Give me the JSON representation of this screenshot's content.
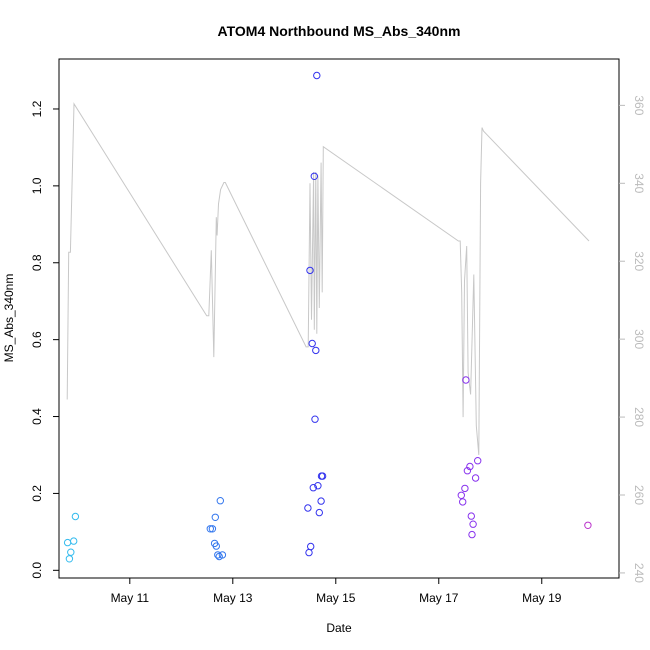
{
  "chart_data": {
    "type": "scatter",
    "title": "ATOM4 Northbound MS_Abs_340nm",
    "xlabel": "Date",
    "ylabel": "MS_Abs_340nm",
    "x_axis": {
      "type": "date",
      "range": [
        "2019-05-09T15:00",
        "2019-05-20T12:00"
      ],
      "ticks": [
        {
          "value": "2019-05-11T00:00",
          "label": "May 11"
        },
        {
          "value": "2019-05-13T00:00",
          "label": "May 13"
        },
        {
          "value": "2019-05-15T00:00",
          "label": "May 15"
        },
        {
          "value": "2019-05-17T00:00",
          "label": "May 17"
        },
        {
          "value": "2019-05-19T00:00",
          "label": "May 19"
        }
      ]
    },
    "y_axis": {
      "range": [
        -0.02,
        1.33
      ],
      "ticks": [
        0.0,
        0.2,
        0.4,
        0.6,
        0.8,
        1.0,
        1.2
      ],
      "tick_labels": [
        "0.0",
        "0.2",
        "0.4",
        "0.6",
        "0.8",
        "1.0",
        "1.2"
      ]
    },
    "y2_axis": {
      "range": [
        238.7,
        371.9
      ],
      "ticks": [
        240,
        260,
        280,
        300,
        320,
        340,
        360
      ],
      "tick_labels": [
        "240",
        "260",
        "280",
        "300",
        "320",
        "340",
        "360"
      ],
      "color": "#bbbbbb"
    },
    "grid": false,
    "series": [
      {
        "kind": "points",
        "marker": "open-circle",
        "points": [
          {
            "x": "2019-05-09T19:00",
            "y": 0.072,
            "color": "#33bbee"
          },
          {
            "x": "2019-05-09T19:50",
            "y": 0.03,
            "color": "#33bbee"
          },
          {
            "x": "2019-05-09T20:30",
            "y": 0.047,
            "color": "#33bbee"
          },
          {
            "x": "2019-05-09T21:50",
            "y": 0.076,
            "color": "#33bbee"
          },
          {
            "x": "2019-05-09T22:40",
            "y": 0.14,
            "color": "#33bbee"
          },
          {
            "x": "2019-05-12T13:30",
            "y": 0.108,
            "color": "#3377ee"
          },
          {
            "x": "2019-05-12T14:30",
            "y": 0.108,
            "color": "#3377ee"
          },
          {
            "x": "2019-05-12T15:30",
            "y": 0.07,
            "color": "#3377ee"
          },
          {
            "x": "2019-05-12T15:50",
            "y": 0.138,
            "color": "#3377ee"
          },
          {
            "x": "2019-05-12T16:20",
            "y": 0.063,
            "color": "#3377ee"
          },
          {
            "x": "2019-05-12T17:00",
            "y": 0.04,
            "color": "#3377ee"
          },
          {
            "x": "2019-05-12T17:40",
            "y": 0.036,
            "color": "#3377ee"
          },
          {
            "x": "2019-05-12T18:10",
            "y": 0.181,
            "color": "#3377ee"
          },
          {
            "x": "2019-05-12T19:10",
            "y": 0.04,
            "color": "#3377ee"
          },
          {
            "x": "2019-05-14T11:00",
            "y": 0.162,
            "color": "#3333ee"
          },
          {
            "x": "2019-05-14T11:30",
            "y": 0.046,
            "color": "#3333ee"
          },
          {
            "x": "2019-05-14T12:00",
            "y": 0.78,
            "color": "#3333ee"
          },
          {
            "x": "2019-05-14T12:20",
            "y": 0.062,
            "color": "#3333ee"
          },
          {
            "x": "2019-05-14T13:00",
            "y": 0.59,
            "color": "#3333ee"
          },
          {
            "x": "2019-05-14T13:30",
            "y": 0.215,
            "color": "#3333ee"
          },
          {
            "x": "2019-05-14T14:00",
            "y": 1.025,
            "color": "#3333ee"
          },
          {
            "x": "2019-05-14T14:20",
            "y": 0.393,
            "color": "#3333ee"
          },
          {
            "x": "2019-05-14T14:40",
            "y": 0.572,
            "color": "#3333ee"
          },
          {
            "x": "2019-05-14T15:10",
            "y": 1.287,
            "color": "#3333ee"
          },
          {
            "x": "2019-05-14T15:40",
            "y": 0.22,
            "color": "#3333ee"
          },
          {
            "x": "2019-05-14T16:20",
            "y": 0.15,
            "color": "#3333ee"
          },
          {
            "x": "2019-05-14T17:10",
            "y": 0.18,
            "color": "#3333ee"
          },
          {
            "x": "2019-05-14T17:20",
            "y": 0.245,
            "color": "#3333ee"
          },
          {
            "x": "2019-05-14T17:50",
            "y": 0.245,
            "color": "#3333ee"
          },
          {
            "x": "2019-05-17T10:30",
            "y": 0.195,
            "color": "#8833ee"
          },
          {
            "x": "2019-05-17T11:10",
            "y": 0.178,
            "color": "#8833ee"
          },
          {
            "x": "2019-05-17T12:10",
            "y": 0.213,
            "color": "#8833ee"
          },
          {
            "x": "2019-05-17T12:40",
            "y": 0.495,
            "color": "#8833ee"
          },
          {
            "x": "2019-05-17T13:20",
            "y": 0.259,
            "color": "#8833ee"
          },
          {
            "x": "2019-05-17T14:30",
            "y": 0.27,
            "color": "#8833ee"
          },
          {
            "x": "2019-05-17T15:10",
            "y": 0.141,
            "color": "#8833ee"
          },
          {
            "x": "2019-05-17T15:30",
            "y": 0.093,
            "color": "#8833ee"
          },
          {
            "x": "2019-05-17T16:00",
            "y": 0.12,
            "color": "#8833ee"
          },
          {
            "x": "2019-05-17T17:10",
            "y": 0.24,
            "color": "#8833ee"
          },
          {
            "x": "2019-05-17T18:10",
            "y": 0.285,
            "color": "#8833ee"
          },
          {
            "x": "2019-05-19T21:30",
            "y": 0.117,
            "color": "#bb33cc"
          }
        ]
      },
      {
        "kind": "line",
        "axis": "right",
        "color": "#c8c8c8",
        "points": [
          [
            "2019-05-09T18:50",
            284.5
          ],
          [
            "2019-05-09T19:30",
            322.3
          ],
          [
            "2019-05-09T20:20",
            322.3
          ],
          [
            "2019-05-09T22:00",
            360.4
          ],
          [
            "2019-05-12T11:50",
            306.0
          ],
          [
            "2019-05-12T12:50",
            306.0
          ],
          [
            "2019-05-12T14:00",
            322.8
          ],
          [
            "2019-05-12T15:10",
            295.4
          ],
          [
            "2019-05-12T16:20",
            331.3
          ],
          [
            "2019-05-12T16:40",
            326.6
          ],
          [
            "2019-05-12T17:20",
            334.7
          ],
          [
            "2019-05-12T18:20",
            338.4
          ],
          [
            "2019-05-12T19:50",
            340.2
          ],
          [
            "2019-05-12T20:30",
            340.2
          ],
          [
            "2019-05-14T10:10",
            298.0
          ],
          [
            "2019-05-14T11:10",
            298.0
          ],
          [
            "2019-05-14T12:00",
            340.0
          ],
          [
            "2019-05-14T12:40",
            305.0
          ],
          [
            "2019-05-14T13:40",
            342.9
          ],
          [
            "2019-05-14T14:00",
            302.4
          ],
          [
            "2019-05-14T14:40",
            342.9
          ],
          [
            "2019-05-14T15:10",
            301.4
          ],
          [
            "2019-05-14T15:40",
            342.0
          ],
          [
            "2019-05-14T16:20",
            308.0
          ],
          [
            "2019-05-14T17:10",
            345.3
          ],
          [
            "2019-05-14T17:40",
            312.0
          ],
          [
            "2019-05-14T18:10",
            349.4
          ],
          [
            "2019-05-17T09:10",
            325.2
          ],
          [
            "2019-05-17T10:00",
            325.2
          ],
          [
            "2019-05-17T10:40",
            312.0
          ],
          [
            "2019-05-17T11:20",
            280.0
          ],
          [
            "2019-05-17T12:00",
            315.0
          ],
          [
            "2019-05-17T13:00",
            323.9
          ],
          [
            "2019-05-17T13:40",
            291.4
          ],
          [
            "2019-05-17T14:50",
            285.8
          ],
          [
            "2019-05-17T16:20",
            316.6
          ],
          [
            "2019-05-17T17:30",
            277.8
          ],
          [
            "2019-05-17T18:40",
            270.3
          ],
          [
            "2019-05-17T19:30",
            340.0
          ],
          [
            "2019-05-17T20:10",
            354.3
          ],
          [
            "2019-05-17T20:50",
            353.4
          ],
          [
            "2019-05-19T22:00",
            325.2
          ]
        ]
      }
    ]
  }
}
